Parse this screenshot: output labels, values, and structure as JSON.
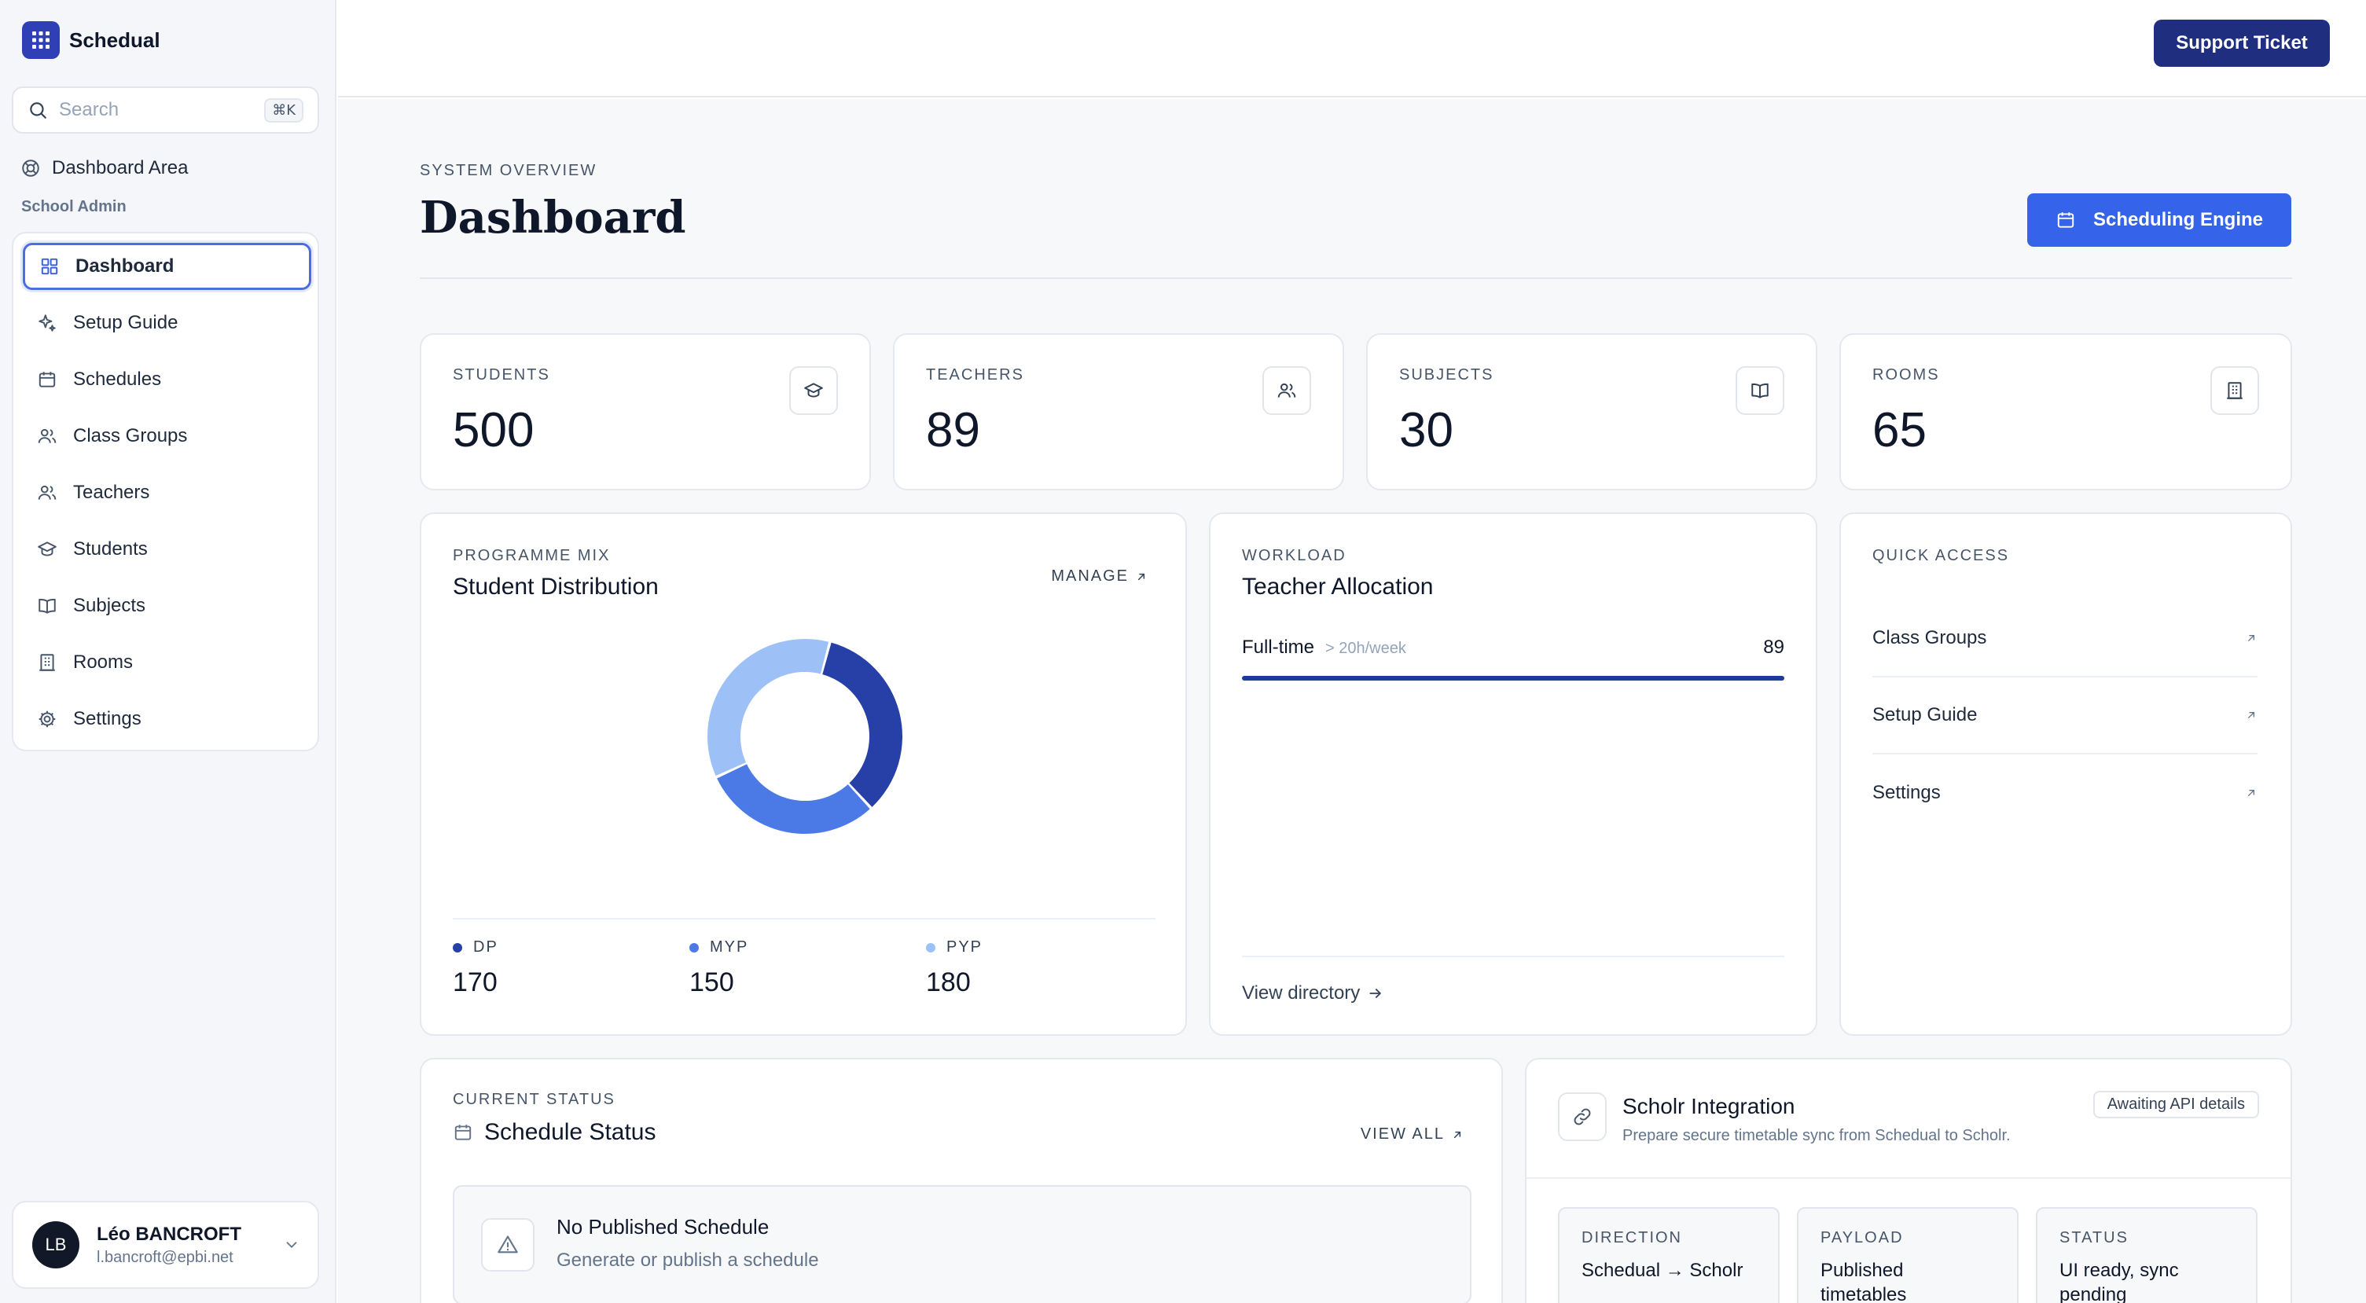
{
  "app": {
    "name": "Schedual"
  },
  "search": {
    "placeholder": "Search",
    "shortcut": "⌘K"
  },
  "sidebar": {
    "area_label": "Dashboard Area",
    "section_label": "School Admin",
    "items": [
      {
        "label": "Dashboard",
        "icon": "grid-icon",
        "active": true
      },
      {
        "label": "Setup Guide",
        "icon": "sparkle-icon"
      },
      {
        "label": "Schedules",
        "icon": "calendar-icon"
      },
      {
        "label": "Class Groups",
        "icon": "users-icon"
      },
      {
        "label": "Teachers",
        "icon": "users-icon"
      },
      {
        "label": "Students",
        "icon": "graduation-cap-icon"
      },
      {
        "label": "Subjects",
        "icon": "book-icon"
      },
      {
        "label": "Rooms",
        "icon": "building-icon"
      },
      {
        "label": "Settings",
        "icon": "gear-icon"
      }
    ]
  },
  "user": {
    "initials": "LB",
    "name": "Léo BANCROFT",
    "email": "l.bancroft@epbi.net"
  },
  "topbar": {
    "support_label": "Support Ticket"
  },
  "header": {
    "eyebrow": "SYSTEM OVERVIEW",
    "title": "Dashboard",
    "engine_label": "Scheduling Engine"
  },
  "stats": [
    {
      "label": "STUDENTS",
      "value": "500",
      "icon": "graduation-cap-icon"
    },
    {
      "label": "TEACHERS",
      "value": "89",
      "icon": "users-icon"
    },
    {
      "label": "SUBJECTS",
      "value": "30",
      "icon": "book-icon"
    },
    {
      "label": "ROOMS",
      "value": "65",
      "icon": "building-icon"
    }
  ],
  "distribution": {
    "eyebrow": "PROGRAMME MIX",
    "title": "Student Distribution",
    "manage_label": "MANAGE",
    "legend": [
      {
        "label": "DP",
        "value": "170"
      },
      {
        "label": "MYP",
        "value": "150"
      },
      {
        "label": "PYP",
        "value": "180"
      }
    ]
  },
  "chart_data": {
    "type": "pie",
    "donut": true,
    "categories": [
      "DP",
      "MYP",
      "PYP"
    ],
    "values": [
      170,
      150,
      180
    ],
    "colors": [
      "#2740a8",
      "#4b7ae6",
      "#9dc1f7"
    ]
  },
  "workload": {
    "eyebrow": "WORKLOAD",
    "title": "Teacher Allocation",
    "row_label": "Full-time",
    "row_hint": "> 20h/week",
    "row_value": "89",
    "row_fraction": 1.0,
    "link_label": "View directory"
  },
  "quick_access": {
    "eyebrow": "QUICK ACCESS",
    "items": [
      "Class Groups",
      "Setup Guide",
      "Settings"
    ]
  },
  "schedule_status": {
    "eyebrow": "CURRENT STATUS",
    "title": "Schedule Status",
    "view_all_label": "VIEW ALL",
    "empty_title": "No Published Schedule",
    "empty_desc": "Generate or publish a schedule"
  },
  "integration": {
    "title": "Scholr Integration",
    "desc": "Prepare secure timetable sync from Schedual to Scholr.",
    "badge": "Awaiting API details",
    "tiles": [
      {
        "label": "DIRECTION",
        "value": "Schedual → Scholr"
      },
      {
        "label": "PAYLOAD",
        "value": "Published timetables"
      },
      {
        "label": "STATUS",
        "value": "UI ready, sync pending"
      }
    ]
  },
  "colors": {
    "brand": "#2f3fb6",
    "navy": "#1f2e7e",
    "accent": "#3563e9",
    "progress": "#1f3a9e"
  }
}
